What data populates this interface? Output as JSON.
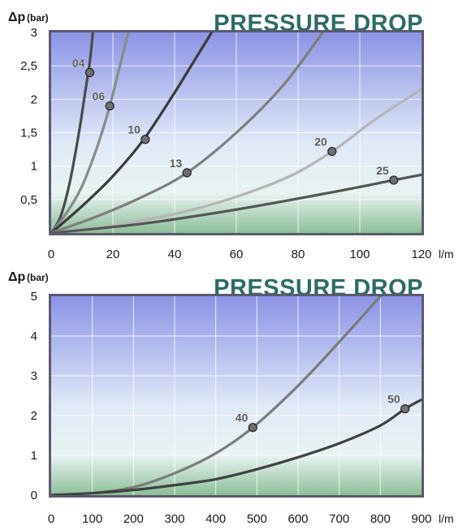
{
  "colors": {
    "title": "#2e6b66",
    "frame": "#6b6b80",
    "grid": "#ffffff",
    "bg_top": "#8c94e6",
    "bg_mid": "#e2eef6",
    "bg_bottom": "#8cbf98",
    "marker": "#707070"
  },
  "chart_data": [
    {
      "type": "line",
      "title": "PRESSURE DROP",
      "ylabel": "Δp",
      "ylabel_unit": "(bar)",
      "xlabel": "l/m",
      "xlim": [
        0,
        120
      ],
      "ylim": [
        0,
        3
      ],
      "xticks": [
        "0",
        "20",
        "40",
        "60",
        "80",
        "100",
        "120"
      ],
      "yticks": [
        "",
        "0,5",
        "1",
        "1,5",
        "2",
        "2,5",
        "3"
      ],
      "grid": true,
      "series": [
        {
          "name": "04",
          "color": "#4a4a4a",
          "x": [
            0,
            3,
            6,
            9,
            11,
            12.5,
            13.5
          ],
          "y": [
            0,
            0.24,
            0.75,
            1.5,
            2.1,
            2.55,
            3.0
          ],
          "label_point": [
            12.5,
            2.4
          ]
        },
        {
          "name": "06",
          "color": "#8a8a8a",
          "x": [
            0,
            5,
            10,
            15,
            19,
            22,
            25
          ],
          "y": [
            0,
            0.3,
            0.7,
            1.3,
            1.9,
            2.45,
            3.0
          ],
          "label_point": [
            19,
            1.9
          ]
        },
        {
          "name": "10",
          "color": "#3a3a3a",
          "x": [
            0,
            10,
            20,
            30,
            40,
            46,
            52
          ],
          "y": [
            0,
            0.4,
            0.85,
            1.4,
            2.1,
            2.55,
            3.0
          ],
          "label_point": [
            30.5,
            1.4
          ]
        },
        {
          "name": "13",
          "color": "#7e7e7e",
          "x": [
            0,
            15,
            30,
            44,
            60,
            75,
            88
          ],
          "y": [
            0,
            0.25,
            0.55,
            0.9,
            1.5,
            2.2,
            3.0
          ],
          "label_point": [
            44,
            0.9
          ]
        },
        {
          "name": "20",
          "color": "#b5b5b5",
          "x": [
            0,
            25,
            50,
            75,
            91,
            105,
            120
          ],
          "y": [
            0,
            0.15,
            0.4,
            0.8,
            1.22,
            1.7,
            2.15
          ],
          "label_point": [
            91,
            1.22
          ]
        },
        {
          "name": "25",
          "color": "#555555",
          "x": [
            0,
            30,
            60,
            90,
            111,
            120
          ],
          "y": [
            0,
            0.14,
            0.35,
            0.6,
            0.79,
            0.87
          ],
          "label_point": [
            111,
            0.79
          ]
        }
      ]
    },
    {
      "type": "line",
      "title": "PRESSURE DROP",
      "ylabel": "Δp",
      "ylabel_unit": "(bar)",
      "xlabel": "l/m",
      "xlim": [
        0,
        900
      ],
      "ylim": [
        0,
        5
      ],
      "xticks": [
        "0",
        "100",
        "200",
        "300",
        "400",
        "500",
        "600",
        "700",
        "800",
        "900"
      ],
      "yticks": [
        "0",
        "1",
        "2",
        "3",
        "4",
        "5"
      ],
      "grid": true,
      "series": [
        {
          "name": "40",
          "color": "#7a7a7a",
          "x": [
            0,
            100,
            200,
            300,
            400,
            490,
            600,
            700,
            800
          ],
          "y": [
            0,
            0.05,
            0.2,
            0.55,
            1.05,
            1.7,
            2.75,
            3.85,
            5.0
          ],
          "label_point": [
            490,
            1.7
          ]
        },
        {
          "name": "50",
          "color": "#404040",
          "x": [
            0,
            100,
            200,
            300,
            400,
            500,
            600,
            700,
            800,
            860,
            900
          ],
          "y": [
            0,
            0.05,
            0.13,
            0.25,
            0.4,
            0.65,
            0.95,
            1.3,
            1.75,
            2.17,
            2.4
          ],
          "label_point": [
            860,
            2.17
          ]
        }
      ]
    }
  ]
}
